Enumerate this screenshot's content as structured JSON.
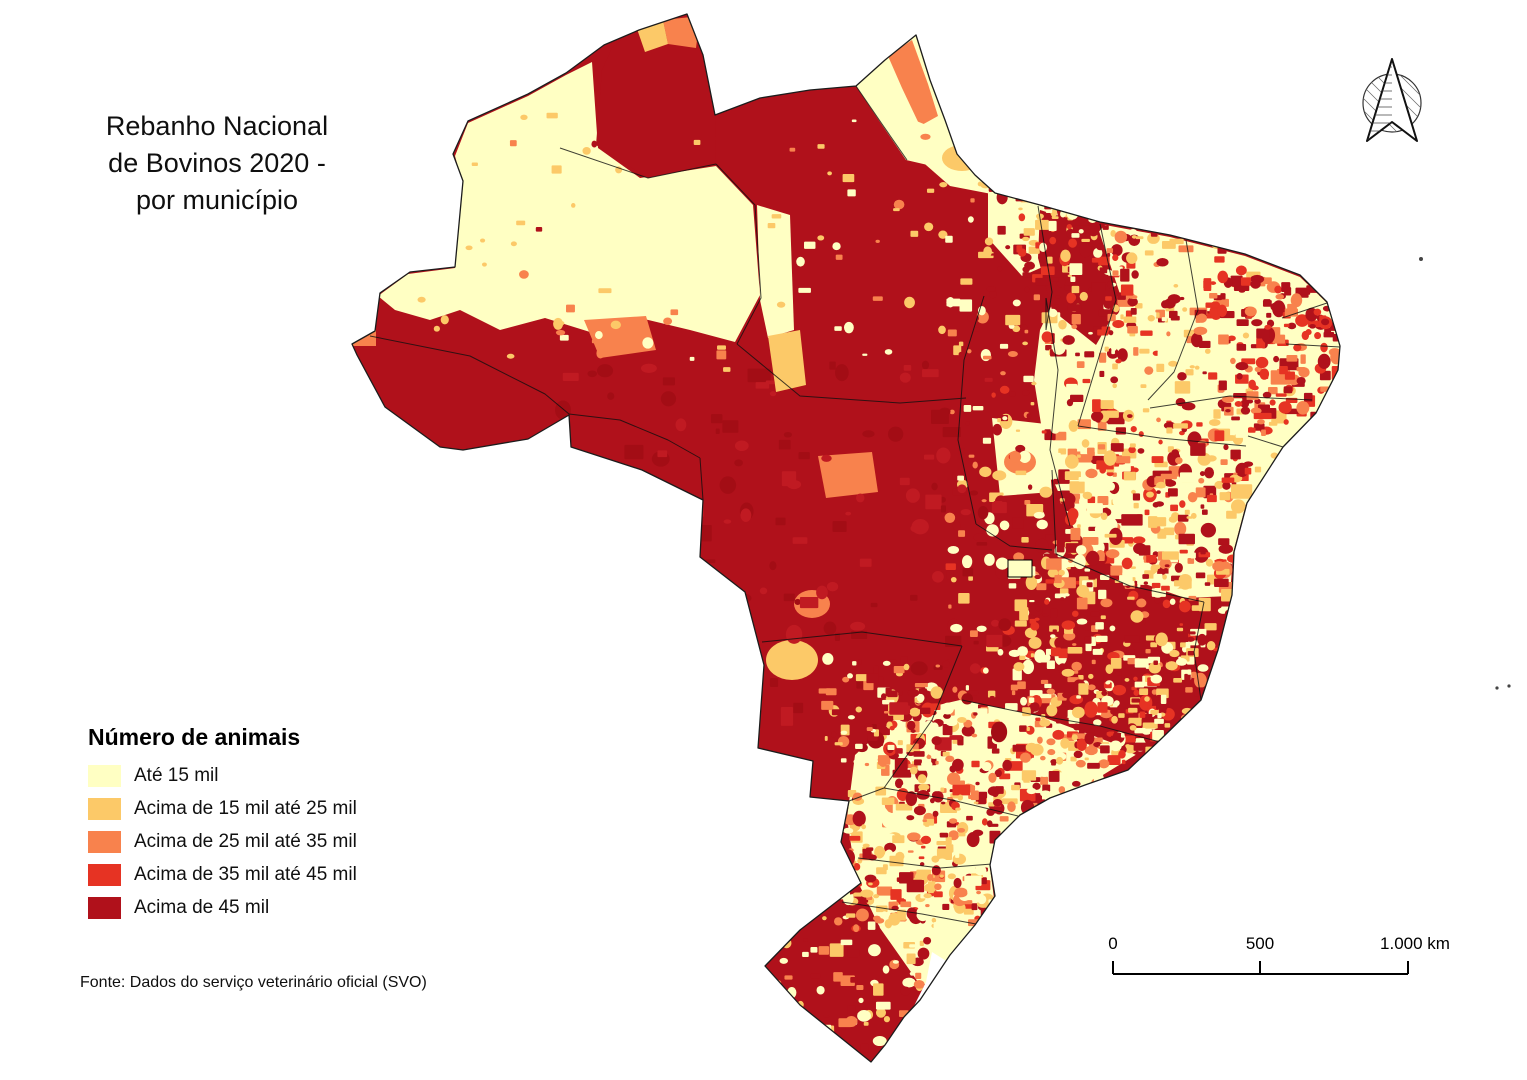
{
  "title": {
    "lines": [
      "Rebanho Nacional",
      "de Bovinos 2020 -",
      "por município"
    ]
  },
  "legend": {
    "title": "Número de animais",
    "items": [
      {
        "label": "Até 15 mil",
        "color": "#FFFFC3"
      },
      {
        "label": "Acima de 15 mil até 25 mil",
        "color": "#FCC968"
      },
      {
        "label": "Acima de 25 mil até 35 mil",
        "color": "#F8824D"
      },
      {
        "label": "Acima de 35 mil até 45 mil",
        "color": "#E63323"
      },
      {
        "label": "Acima de 45 mil",
        "color": "#B0111B"
      }
    ]
  },
  "source": "Fonte: Dados do serviço veterinário oficial (SVO)",
  "scalebar": {
    "labels": [
      "0",
      "500",
      "1.000 km"
    ]
  },
  "north_arrow": {
    "icon": "north-arrow-icon"
  }
}
